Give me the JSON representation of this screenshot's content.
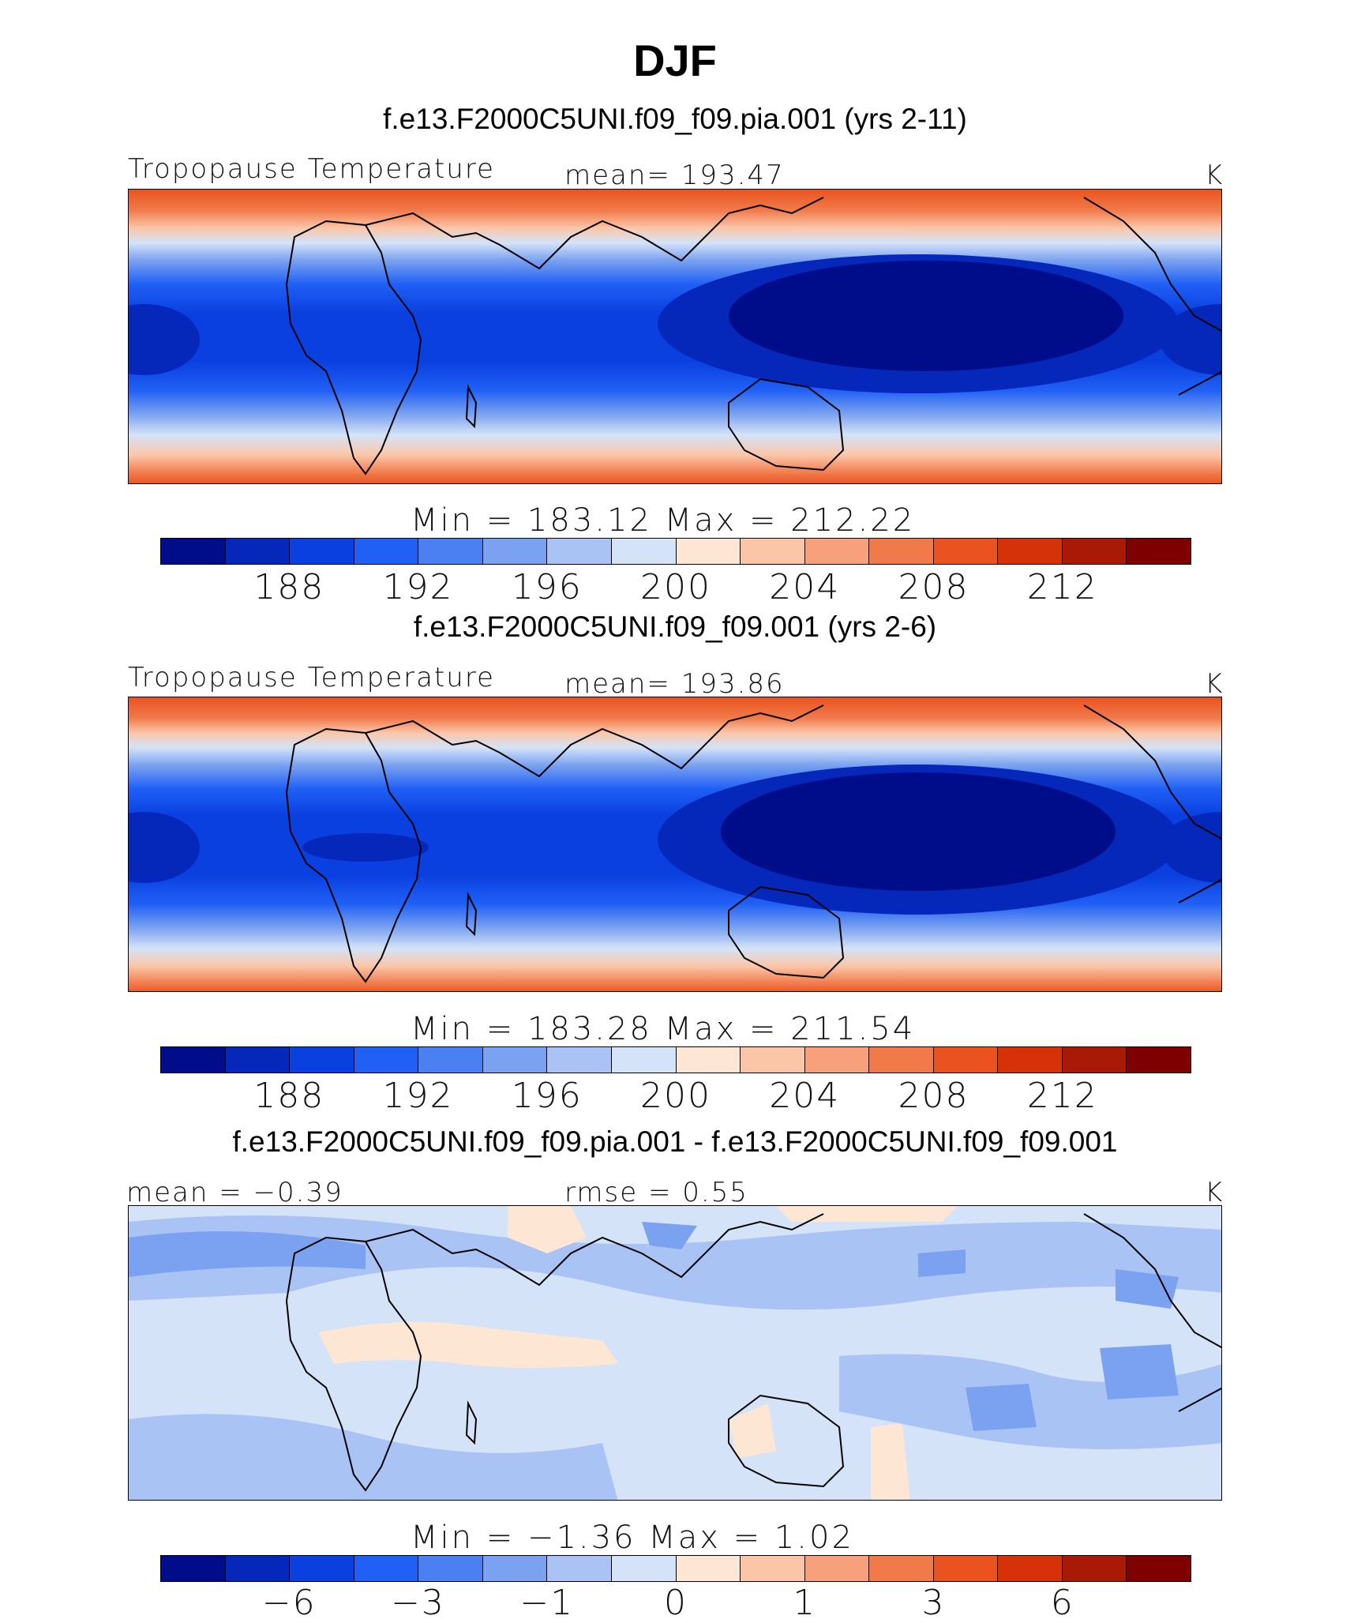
{
  "title": "DJF",
  "palette_full": [
    "#000d8a",
    "#0528bb",
    "#0a3fe0",
    "#2060f5",
    "#4a80f2",
    "#7aa2f0",
    "#a9c3f4",
    "#d4e3f8",
    "#fde6d3",
    "#fbc6a8",
    "#f7a07c",
    "#f17a4b",
    "#ea531f",
    "#d6320a",
    "#a81a06",
    "#7f0000"
  ],
  "palette_diff": [
    "#000d8a",
    "#0528bb",
    "#0a3fe0",
    "#2060f5",
    "#4a80f2",
    "#7aa2f0",
    "#a9c3f4",
    "#d4e3f8",
    "#fde6d3",
    "#fbc6a8",
    "#f7a07c",
    "#f17a4b",
    "#ea531f",
    "#d6320a",
    "#a81a06",
    "#7f0000"
  ],
  "panels": [
    {
      "run": "f.e13.F2000C5UNI.f09_f09.pia.001 (yrs 2-11)",
      "variable": "Tropopause Temperature",
      "stat_text": "mean=  193.47",
      "units": "K",
      "minmax": "Min  =  183.12  Max  =  212.22",
      "ticks": [
        "188",
        "192",
        "196",
        "200",
        "204",
        "208",
        "212"
      ]
    },
    {
      "run": "f.e13.F2000C5UNI.f09_f09.001 (yrs 2-6)",
      "variable": "Tropopause Temperature",
      "stat_text": "mean=  193.86",
      "units": "K",
      "minmax": "Min  =  183.28  Max  =  211.54",
      "ticks": [
        "188",
        "192",
        "196",
        "200",
        "204",
        "208",
        "212"
      ]
    },
    {
      "run": "f.e13.F2000C5UNI.f09_f09.pia.001 - f.e13.F2000C5UNI.f09_f09.001",
      "mean_label": "mean =   −0.39",
      "rmse_label": "rmse =     0.55",
      "units": "K",
      "minmax": "Min  =    −1.36  Max  =     1.02",
      "ticks": [
        "−6",
        "−3",
        "−1",
        "0",
        "1",
        "3",
        "6"
      ]
    }
  ],
  "chart_data": [
    {
      "type": "heatmap",
      "title": "Tropopause Temperature",
      "subtitle": "f.e13.F2000C5UNI.f09_f09.pia.001 (yrs 2-11)",
      "units": "K",
      "mean": 193.47,
      "min": 183.12,
      "max": 212.22,
      "colorbar_levels": [
        186,
        188,
        190,
        192,
        194,
        196,
        198,
        200,
        202,
        204,
        206,
        208,
        210,
        212,
        214
      ],
      "colorbar_labels": [
        188,
        192,
        196,
        200,
        204,
        208,
        212
      ]
    },
    {
      "type": "heatmap",
      "title": "Tropopause Temperature",
      "subtitle": "f.e13.F2000C5UNI.f09_f09.001 (yrs 2-6)",
      "units": "K",
      "mean": 193.86,
      "min": 183.28,
      "max": 211.54,
      "colorbar_levels": [
        186,
        188,
        190,
        192,
        194,
        196,
        198,
        200,
        202,
        204,
        206,
        208,
        210,
        212,
        214
      ],
      "colorbar_labels": [
        188,
        192,
        196,
        200,
        204,
        208,
        212
      ]
    },
    {
      "type": "heatmap",
      "title": "f.e13.F2000C5UNI.f09_f09.pia.001 - f.e13.F2000C5UNI.f09_f09.001",
      "units": "K",
      "mean": -0.39,
      "rmse": 0.55,
      "min": -1.36,
      "max": 1.02,
      "colorbar_levels": [
        -8,
        -6,
        -4,
        -3,
        -2,
        -1,
        -0.5,
        0,
        0.5,
        1,
        2,
        3,
        4,
        6,
        8
      ],
      "colorbar_labels": [
        -6,
        -3,
        -1,
        0,
        1,
        3,
        6
      ]
    }
  ]
}
